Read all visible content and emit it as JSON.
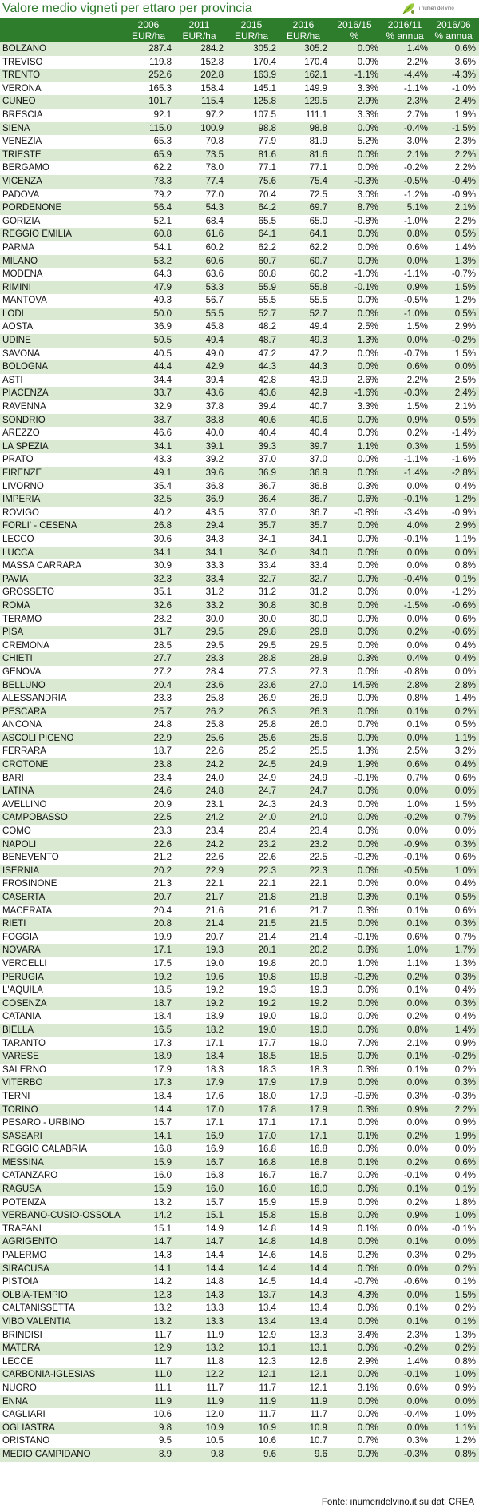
{
  "title": "Valore medio vigneti per ettaro per provincia",
  "logo_text": "i numeri del vino",
  "source": "Fonte: inumeridelvino.it su dati CREA",
  "colors": {
    "header": "#2d7d2d",
    "row_alt": "#d9e9d2",
    "title": "#2e7a2e"
  },
  "columns": [
    {
      "line1": "",
      "line2": ""
    },
    {
      "line1": "2006",
      "line2": "EUR/ha"
    },
    {
      "line1": "2011",
      "line2": "EUR/ha"
    },
    {
      "line1": "2015",
      "line2": "EUR/ha"
    },
    {
      "line1": "2016",
      "line2": "EUR/ha"
    },
    {
      "line1": "2016/15",
      "line2": "%"
    },
    {
      "line1": "2016/11",
      "line2": "% annua"
    },
    {
      "line1": "2016/06",
      "line2": "% annua"
    }
  ],
  "rows": [
    [
      "BOLZANO",
      "287.4",
      "284.2",
      "305.2",
      "305.2",
      "0.0%",
      "1.4%",
      "0.6%"
    ],
    [
      "TREVISO",
      "119.8",
      "152.8",
      "170.4",
      "170.4",
      "0.0%",
      "2.2%",
      "3.6%"
    ],
    [
      "TRENTO",
      "252.6",
      "202.8",
      "163.9",
      "162.1",
      "-1.1%",
      "-4.4%",
      "-4.3%"
    ],
    [
      "VERONA",
      "165.3",
      "158.4",
      "145.1",
      "149.9",
      "3.3%",
      "-1.1%",
      "-1.0%"
    ],
    [
      "CUNEO",
      "101.7",
      "115.4",
      "125.8",
      "129.5",
      "2.9%",
      "2.3%",
      "2.4%"
    ],
    [
      "BRESCIA",
      "92.1",
      "97.2",
      "107.5",
      "111.1",
      "3.3%",
      "2.7%",
      "1.9%"
    ],
    [
      "SIENA",
      "115.0",
      "100.9",
      "98.8",
      "98.8",
      "0.0%",
      "-0.4%",
      "-1.5%"
    ],
    [
      "VENEZIA",
      "65.3",
      "70.8",
      "77.9",
      "81.9",
      "5.2%",
      "3.0%",
      "2.3%"
    ],
    [
      "TRIESTE",
      "65.9",
      "73.5",
      "81.6",
      "81.6",
      "0.0%",
      "2.1%",
      "2.2%"
    ],
    [
      "BERGAMO",
      "62.2",
      "78.0",
      "77.1",
      "77.1",
      "0.0%",
      "-0.2%",
      "2.2%"
    ],
    [
      "VICENZA",
      "78.3",
      "77.4",
      "75.6",
      "75.4",
      "-0.3%",
      "-0.5%",
      "-0.4%"
    ],
    [
      "PADOVA",
      "79.2",
      "77.0",
      "70.4",
      "72.5",
      "3.0%",
      "-1.2%",
      "-0.9%"
    ],
    [
      "PORDENONE",
      "56.4",
      "54.3",
      "64.2",
      "69.7",
      "8.7%",
      "5.1%",
      "2.1%"
    ],
    [
      "GORIZIA",
      "52.1",
      "68.4",
      "65.5",
      "65.0",
      "-0.8%",
      "-1.0%",
      "2.2%"
    ],
    [
      "REGGIO EMILIA",
      "60.8",
      "61.6",
      "64.1",
      "64.1",
      "0.0%",
      "0.8%",
      "0.5%"
    ],
    [
      "PARMA",
      "54.1",
      "60.2",
      "62.2",
      "62.2",
      "0.0%",
      "0.6%",
      "1.4%"
    ],
    [
      "MILANO",
      "53.2",
      "60.6",
      "60.7",
      "60.7",
      "0.0%",
      "0.0%",
      "1.3%"
    ],
    [
      "MODENA",
      "64.3",
      "63.6",
      "60.8",
      "60.2",
      "-1.0%",
      "-1.1%",
      "-0.7%"
    ],
    [
      "RIMINI",
      "47.9",
      "53.3",
      "55.9",
      "55.8",
      "-0.1%",
      "0.9%",
      "1.5%"
    ],
    [
      "MANTOVA",
      "49.3",
      "56.7",
      "55.5",
      "55.5",
      "0.0%",
      "-0.5%",
      "1.2%"
    ],
    [
      "LODI",
      "50.0",
      "55.5",
      "52.7",
      "52.7",
      "0.0%",
      "-1.0%",
      "0.5%"
    ],
    [
      "AOSTA",
      "36.9",
      "45.8",
      "48.2",
      "49.4",
      "2.5%",
      "1.5%",
      "2.9%"
    ],
    [
      "UDINE",
      "50.5",
      "49.4",
      "48.7",
      "49.3",
      "1.3%",
      "0.0%",
      "-0.2%"
    ],
    [
      "SAVONA",
      "40.5",
      "49.0",
      "47.2",
      "47.2",
      "0.0%",
      "-0.7%",
      "1.5%"
    ],
    [
      "BOLOGNA",
      "44.4",
      "42.9",
      "44.3",
      "44.3",
      "0.0%",
      "0.6%",
      "0.0%"
    ],
    [
      "ASTI",
      "34.4",
      "39.4",
      "42.8",
      "43.9",
      "2.6%",
      "2.2%",
      "2.5%"
    ],
    [
      "PIACENZA",
      "33.7",
      "43.6",
      "43.6",
      "42.9",
      "-1.6%",
      "-0.3%",
      "2.4%"
    ],
    [
      "RAVENNA",
      "32.9",
      "37.8",
      "39.4",
      "40.7",
      "3.3%",
      "1.5%",
      "2.1%"
    ],
    [
      "SONDRIO",
      "38.7",
      "38.8",
      "40.6",
      "40.6",
      "0.0%",
      "0.9%",
      "0.5%"
    ],
    [
      "AREZZO",
      "46.6",
      "40.0",
      "40.4",
      "40.4",
      "0.0%",
      "0.2%",
      "-1.4%"
    ],
    [
      "LA SPEZIA",
      "34.1",
      "39.1",
      "39.3",
      "39.7",
      "1.1%",
      "0.3%",
      "1.5%"
    ],
    [
      "PRATO",
      "43.3",
      "39.2",
      "37.0",
      "37.0",
      "0.0%",
      "-1.1%",
      "-1.6%"
    ],
    [
      "FIRENZE",
      "49.1",
      "39.6",
      "36.9",
      "36.9",
      "0.0%",
      "-1.4%",
      "-2.8%"
    ],
    [
      "LIVORNO",
      "35.4",
      "36.8",
      "36.7",
      "36.8",
      "0.3%",
      "0.0%",
      "0.4%"
    ],
    [
      "IMPERIA",
      "32.5",
      "36.9",
      "36.4",
      "36.7",
      "0.6%",
      "-0.1%",
      "1.2%"
    ],
    [
      "ROVIGO",
      "40.2",
      "43.5",
      "37.0",
      "36.7",
      "-0.8%",
      "-3.4%",
      "-0.9%"
    ],
    [
      "FORLI' - CESENA",
      "26.8",
      "29.4",
      "35.7",
      "35.7",
      "0.0%",
      "4.0%",
      "2.9%"
    ],
    [
      "LECCO",
      "30.6",
      "34.3",
      "34.1",
      "34.1",
      "0.0%",
      "-0.1%",
      "1.1%"
    ],
    [
      "LUCCA",
      "34.1",
      "34.1",
      "34.0",
      "34.0",
      "0.0%",
      "0.0%",
      "0.0%"
    ],
    [
      "MASSA CARRARA",
      "30.9",
      "33.3",
      "33.4",
      "33.4",
      "0.0%",
      "0.0%",
      "0.8%"
    ],
    [
      "PAVIA",
      "32.3",
      "33.4",
      "32.7",
      "32.7",
      "0.0%",
      "-0.4%",
      "0.1%"
    ],
    [
      "GROSSETO",
      "35.1",
      "31.2",
      "31.2",
      "31.2",
      "0.0%",
      "0.0%",
      "-1.2%"
    ],
    [
      "ROMA",
      "32.6",
      "33.2",
      "30.8",
      "30.8",
      "0.0%",
      "-1.5%",
      "-0.6%"
    ],
    [
      "TERAMO",
      "28.2",
      "30.0",
      "30.0",
      "30.0",
      "0.0%",
      "0.0%",
      "0.6%"
    ],
    [
      "PISA",
      "31.7",
      "29.5",
      "29.8",
      "29.8",
      "0.0%",
      "0.2%",
      "-0.6%"
    ],
    [
      "CREMONA",
      "28.5",
      "29.5",
      "29.5",
      "29.5",
      "0.0%",
      "0.0%",
      "0.4%"
    ],
    [
      "CHIETI",
      "27.7",
      "28.3",
      "28.8",
      "28.9",
      "0.3%",
      "0.4%",
      "0.4%"
    ],
    [
      "GENOVA",
      "27.2",
      "28.4",
      "27.3",
      "27.3",
      "0.0%",
      "-0.8%",
      "0.0%"
    ],
    [
      "BELLUNO",
      "20.4",
      "23.6",
      "23.6",
      "27.0",
      "14.5%",
      "2.8%",
      "2.8%"
    ],
    [
      "ALESSANDRIA",
      "23.3",
      "25.8",
      "26.9",
      "26.9",
      "0.0%",
      "0.8%",
      "1.4%"
    ],
    [
      "PESCARA",
      "25.7",
      "26.2",
      "26.3",
      "26.3",
      "0.0%",
      "0.1%",
      "0.2%"
    ],
    [
      "ANCONA",
      "24.8",
      "25.8",
      "25.8",
      "26.0",
      "0.7%",
      "0.1%",
      "0.5%"
    ],
    [
      "ASCOLI PICENO",
      "22.9",
      "25.6",
      "25.6",
      "25.6",
      "0.0%",
      "0.0%",
      "1.1%"
    ],
    [
      "FERRARA",
      "18.7",
      "22.6",
      "25.2",
      "25.5",
      "1.3%",
      "2.5%",
      "3.2%"
    ],
    [
      "CROTONE",
      "23.8",
      "24.2",
      "24.5",
      "24.9",
      "1.9%",
      "0.6%",
      "0.4%"
    ],
    [
      "BARI",
      "23.4",
      "24.0",
      "24.9",
      "24.9",
      "-0.1%",
      "0.7%",
      "0.6%"
    ],
    [
      "LATINA",
      "24.6",
      "24.8",
      "24.7",
      "24.7",
      "0.0%",
      "0.0%",
      "0.0%"
    ],
    [
      "AVELLINO",
      "20.9",
      "23.1",
      "24.3",
      "24.3",
      "0.0%",
      "1.0%",
      "1.5%"
    ],
    [
      "CAMPOBASSO",
      "22.5",
      "24.2",
      "24.0",
      "24.0",
      "0.0%",
      "-0.2%",
      "0.7%"
    ],
    [
      "COMO",
      "23.3",
      "23.4",
      "23.4",
      "23.4",
      "0.0%",
      "0.0%",
      "0.0%"
    ],
    [
      "NAPOLI",
      "22.6",
      "24.2",
      "23.2",
      "23.2",
      "0.0%",
      "-0.9%",
      "0.3%"
    ],
    [
      "BENEVENTO",
      "21.2",
      "22.6",
      "22.6",
      "22.5",
      "-0.2%",
      "-0.1%",
      "0.6%"
    ],
    [
      "ISERNIA",
      "20.2",
      "22.9",
      "22.3",
      "22.3",
      "0.0%",
      "-0.5%",
      "1.0%"
    ],
    [
      "FROSINONE",
      "21.3",
      "22.1",
      "22.1",
      "22.1",
      "0.0%",
      "0.0%",
      "0.4%"
    ],
    [
      "CASERTA",
      "20.7",
      "21.7",
      "21.8",
      "21.8",
      "0.3%",
      "0.1%",
      "0.5%"
    ],
    [
      "MACERATA",
      "20.4",
      "21.6",
      "21.6",
      "21.7",
      "0.3%",
      "0.1%",
      "0.6%"
    ],
    [
      "RIETI",
      "20.8",
      "21.4",
      "21.5",
      "21.5",
      "0.0%",
      "0.1%",
      "0.3%"
    ],
    [
      "FOGGIA",
      "19.9",
      "20.7",
      "21.4",
      "21.4",
      "-0.1%",
      "0.6%",
      "0.7%"
    ],
    [
      "NOVARA",
      "17.1",
      "19.3",
      "20.1",
      "20.2",
      "0.8%",
      "1.0%",
      "1.7%"
    ],
    [
      "VERCELLI",
      "17.5",
      "19.0",
      "19.8",
      "20.0",
      "1.0%",
      "1.1%",
      "1.3%"
    ],
    [
      "PERUGIA",
      "19.2",
      "19.6",
      "19.8",
      "19.8",
      "-0.2%",
      "0.2%",
      "0.3%"
    ],
    [
      "L'AQUILA",
      "18.5",
      "19.2",
      "19.3",
      "19.3",
      "0.0%",
      "0.1%",
      "0.4%"
    ],
    [
      "COSENZA",
      "18.7",
      "19.2",
      "19.2",
      "19.2",
      "0.0%",
      "0.0%",
      "0.3%"
    ],
    [
      "CATANIA",
      "18.4",
      "18.9",
      "19.0",
      "19.0",
      "0.0%",
      "0.2%",
      "0.4%"
    ],
    [
      "BIELLA",
      "16.5",
      "18.2",
      "19.0",
      "19.0",
      "0.0%",
      "0.8%",
      "1.4%"
    ],
    [
      "TARANTO",
      "17.3",
      "17.1",
      "17.7",
      "19.0",
      "7.0%",
      "2.1%",
      "0.9%"
    ],
    [
      "VARESE",
      "18.9",
      "18.4",
      "18.5",
      "18.5",
      "0.0%",
      "0.1%",
      "-0.2%"
    ],
    [
      "SALERNO",
      "17.9",
      "18.3",
      "18.3",
      "18.3",
      "0.3%",
      "0.1%",
      "0.2%"
    ],
    [
      "VITERBO",
      "17.3",
      "17.9",
      "17.9",
      "17.9",
      "0.0%",
      "0.0%",
      "0.3%"
    ],
    [
      "TERNI",
      "18.4",
      "17.6",
      "18.0",
      "17.9",
      "-0.5%",
      "0.3%",
      "-0.3%"
    ],
    [
      "TORINO",
      "14.4",
      "17.0",
      "17.8",
      "17.9",
      "0.3%",
      "0.9%",
      "2.2%"
    ],
    [
      "PESARO - URBINO",
      "15.7",
      "17.1",
      "17.1",
      "17.1",
      "0.0%",
      "0.0%",
      "0.9%"
    ],
    [
      "SASSARI",
      "14.1",
      "16.9",
      "17.0",
      "17.1",
      "0.1%",
      "0.2%",
      "1.9%"
    ],
    [
      "REGGIO CALABRIA",
      "16.8",
      "16.9",
      "16.8",
      "16.8",
      "0.0%",
      "0.0%",
      "0.0%"
    ],
    [
      "MESSINA",
      "15.9",
      "16.7",
      "16.8",
      "16.8",
      "0.1%",
      "0.2%",
      "0.6%"
    ],
    [
      "CATANZARO",
      "16.0",
      "16.8",
      "16.7",
      "16.7",
      "0.0%",
      "-0.1%",
      "0.4%"
    ],
    [
      "RAGUSA",
      "15.9",
      "16.0",
      "16.0",
      "16.0",
      "0.0%",
      "0.1%",
      "0.1%"
    ],
    [
      "POTENZA",
      "13.2",
      "15.7",
      "15.9",
      "15.9",
      "0.0%",
      "0.2%",
      "1.8%"
    ],
    [
      "VERBANO-CUSIO-OSSOLA",
      "14.2",
      "15.1",
      "15.8",
      "15.8",
      "0.0%",
      "0.9%",
      "1.0%"
    ],
    [
      "TRAPANI",
      "15.1",
      "14.9",
      "14.8",
      "14.9",
      "0.1%",
      "0.0%",
      "-0.1%"
    ],
    [
      "AGRIGENTO",
      "14.7",
      "14.7",
      "14.8",
      "14.8",
      "0.0%",
      "0.1%",
      "0.0%"
    ],
    [
      "PALERMO",
      "14.3",
      "14.4",
      "14.6",
      "14.6",
      "0.2%",
      "0.3%",
      "0.2%"
    ],
    [
      "SIRACUSA",
      "14.1",
      "14.4",
      "14.4",
      "14.4",
      "0.0%",
      "0.0%",
      "0.2%"
    ],
    [
      "PISTOIA",
      "14.2",
      "14.8",
      "14.5",
      "14.4",
      "-0.7%",
      "-0.6%",
      "0.1%"
    ],
    [
      "OLBIA-TEMPIO",
      "12.3",
      "14.3",
      "13.7",
      "14.3",
      "4.3%",
      "0.0%",
      "1.5%"
    ],
    [
      "CALTANISSETTA",
      "13.2",
      "13.3",
      "13.4",
      "13.4",
      "0.0%",
      "0.1%",
      "0.2%"
    ],
    [
      "VIBO VALENTIA",
      "13.2",
      "13.3",
      "13.4",
      "13.4",
      "0.0%",
      "0.1%",
      "0.1%"
    ],
    [
      "BRINDISI",
      "11.7",
      "11.9",
      "12.9",
      "13.3",
      "3.4%",
      "2.3%",
      "1.3%"
    ],
    [
      "MATERA",
      "12.9",
      "13.2",
      "13.1",
      "13.1",
      "0.0%",
      "-0.2%",
      "0.2%"
    ],
    [
      "LECCE",
      "11.7",
      "11.8",
      "12.3",
      "12.6",
      "2.9%",
      "1.4%",
      "0.8%"
    ],
    [
      "CARBONIA-IGLESIAS",
      "11.0",
      "12.2",
      "12.1",
      "12.1",
      "0.0%",
      "-0.1%",
      "1.0%"
    ],
    [
      "NUORO",
      "11.1",
      "11.7",
      "11.7",
      "12.1",
      "3.1%",
      "0.6%",
      "0.9%"
    ],
    [
      "ENNA",
      "11.9",
      "11.9",
      "11.9",
      "11.9",
      "0.0%",
      "0.0%",
      "0.0%"
    ],
    [
      "CAGLIARI",
      "10.6",
      "12.0",
      "11.7",
      "11.7",
      "0.0%",
      "-0.4%",
      "1.0%"
    ],
    [
      "OGLIASTRA",
      "9.8",
      "10.9",
      "10.9",
      "10.9",
      "0.0%",
      "0.0%",
      "1.1%"
    ],
    [
      "ORISTANO",
      "9.5",
      "10.5",
      "10.6",
      "10.7",
      "0.7%",
      "0.3%",
      "1.2%"
    ],
    [
      "MEDIO CAMPIDANO",
      "8.9",
      "9.8",
      "9.6",
      "9.6",
      "0.0%",
      "-0.3%",
      "0.8%"
    ]
  ]
}
